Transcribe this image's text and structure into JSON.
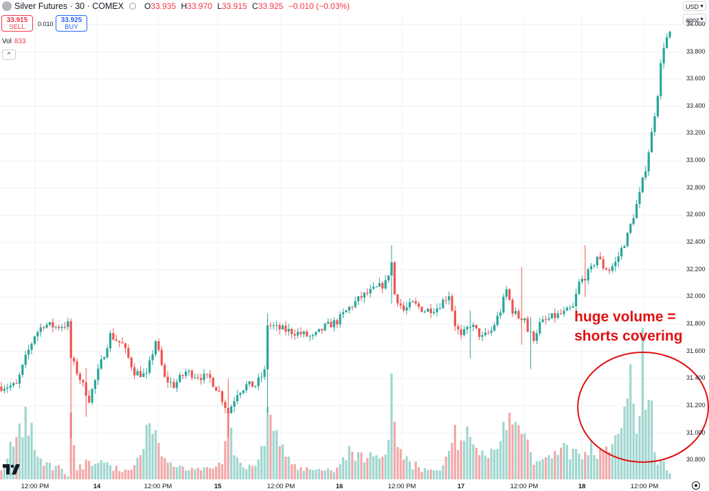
{
  "header": {
    "symbol": "Silver Futures · 30 · COMEX",
    "ohlc": {
      "o_label": "O",
      "o": "33.935",
      "h_label": "H",
      "h": "33.970",
      "l_label": "L",
      "l": "33.915",
      "c_label": "C",
      "c": "33.925",
      "change": "−0.010 (−0.03%)"
    }
  },
  "trade": {
    "sell_price": "33.915",
    "sell_label": "SELL",
    "spread": "0.010",
    "buy_price": "33.925",
    "buy_label": "BUY"
  },
  "volume": {
    "label": "Vol",
    "value": "833"
  },
  "currency": "USD",
  "scale_mode": "apoz",
  "annotation": {
    "line1": "huge volume =",
    "line2": "shorts covering"
  },
  "colors": {
    "up": "#26a69a",
    "down": "#ef5350",
    "vol_up": "#9fd6cf",
    "vol_down": "#f4a7a7",
    "annotation": "#e01010",
    "grid": "#eef0f3"
  },
  "chart_data": {
    "type": "candlestick",
    "ylim": [
      30.66,
      34.08
    ],
    "y_ticks": [
      "34.000",
      "33.800",
      "33.600",
      "33.400",
      "33.200",
      "33.000",
      "32.800",
      "32.600",
      "32.400",
      "32.200",
      "32.000",
      "31.800",
      "31.600",
      "31.400",
      "31.200",
      "31.000",
      "30.800"
    ],
    "x_ticks": [
      {
        "label": "12:00 PM",
        "bold": false
      },
      {
        "label": "14",
        "bold": true
      },
      {
        "label": "12:00 PM",
        "bold": false
      },
      {
        "label": "15",
        "bold": true
      },
      {
        "label": "12:00 PM",
        "bold": false
      },
      {
        "label": "16",
        "bold": true
      },
      {
        "label": "12:00 PM",
        "bold": false
      },
      {
        "label": "17",
        "bold": true
      },
      {
        "label": "12:00 PM",
        "bold": false
      },
      {
        "label": "18",
        "bold": true
      },
      {
        "label": "12:00 PM",
        "bold": false
      }
    ],
    "close_anchors": [
      [
        0,
        31.34
      ],
      [
        5,
        31.35
      ],
      [
        8,
        31.55
      ],
      [
        11,
        31.72
      ],
      [
        14,
        31.8
      ],
      [
        18,
        31.78
      ],
      [
        22,
        31.8
      ],
      [
        23,
        31.55
      ],
      [
        26,
        31.4
      ],
      [
        29,
        31.25
      ],
      [
        32,
        31.45
      ],
      [
        36,
        31.72
      ],
      [
        40,
        31.65
      ],
      [
        44,
        31.45
      ],
      [
        48,
        31.42
      ],
      [
        51,
        31.68
      ],
      [
        54,
        31.4
      ],
      [
        57,
        31.35
      ],
      [
        61,
        31.45
      ],
      [
        65,
        31.42
      ],
      [
        69,
        31.4
      ],
      [
        72,
        31.3
      ],
      [
        75,
        31.15
      ],
      [
        78,
        31.3
      ],
      [
        81,
        31.35
      ],
      [
        84,
        31.35
      ],
      [
        87,
        31.45
      ],
      [
        88,
        31.8
      ],
      [
        91,
        31.77
      ],
      [
        95,
        31.75
      ],
      [
        99,
        31.73
      ],
      [
        103,
        31.7
      ],
      [
        107,
        31.78
      ],
      [
        111,
        31.82
      ],
      [
        115,
        31.92
      ],
      [
        119,
        32.0
      ],
      [
        123,
        32.05
      ],
      [
        127,
        32.1
      ],
      [
        129,
        32.25
      ],
      [
        130,
        32.02
      ],
      [
        133,
        31.9
      ],
      [
        136,
        31.95
      ],
      [
        140,
        31.9
      ],
      [
        144,
        31.92
      ],
      [
        148,
        32.02
      ],
      [
        150,
        31.8
      ],
      [
        152,
        31.7
      ],
      [
        155,
        31.8
      ],
      [
        159,
        31.7
      ],
      [
        162,
        31.75
      ],
      [
        165,
        31.9
      ],
      [
        167,
        32.05
      ],
      [
        169,
        31.9
      ],
      [
        171,
        31.85
      ],
      [
        173,
        31.85
      ],
      [
        174,
        31.75
      ],
      [
        176,
        31.7
      ],
      [
        178,
        31.8
      ],
      [
        182,
        31.85
      ],
      [
        186,
        31.88
      ],
      [
        189,
        31.92
      ],
      [
        191,
        32.1
      ],
      [
        193,
        32.15
      ],
      [
        195,
        32.2
      ],
      [
        197,
        32.3
      ],
      [
        199,
        32.22
      ],
      [
        201,
        32.2
      ],
      [
        203,
        32.25
      ],
      [
        205,
        32.35
      ],
      [
        207,
        32.45
      ],
      [
        209,
        32.6
      ],
      [
        211,
        32.75
      ],
      [
        213,
        32.95
      ],
      [
        215,
        33.2
      ],
      [
        217,
        33.5
      ],
      [
        218,
        33.7
      ],
      [
        219,
        33.85
      ],
      [
        220,
        33.9
      ],
      [
        221,
        33.925
      ]
    ],
    "spike_bars": [
      [
        23,
        "down",
        31.8,
        30.96
      ],
      [
        28,
        "down",
        31.48,
        31.12
      ],
      [
        75,
        "up",
        31.4,
        30.97
      ],
      [
        88,
        "up",
        31.88,
        31.15
      ],
      [
        129,
        "down",
        32.38,
        31.95
      ],
      [
        155,
        "down",
        31.9,
        31.55
      ],
      [
        172,
        "down",
        32.22,
        31.65
      ],
      [
        175,
        "down",
        31.85,
        31.47
      ],
      [
        193,
        "up",
        32.38,
        32.0
      ]
    ],
    "volume_anchors": [
      [
        0,
        60
      ],
      [
        5,
        280
      ],
      [
        8,
        480
      ],
      [
        12,
        150
      ],
      [
        16,
        110
      ],
      [
        20,
        70
      ],
      [
        22,
        20
      ],
      [
        23,
        440
      ],
      [
        25,
        60
      ],
      [
        28,
        130
      ],
      [
        30,
        90
      ],
      [
        34,
        110
      ],
      [
        38,
        90
      ],
      [
        42,
        60
      ],
      [
        46,
        160
      ],
      [
        48,
        360
      ],
      [
        50,
        300
      ],
      [
        52,
        240
      ],
      [
        54,
        140
      ],
      [
        58,
        80
      ],
      [
        62,
        60
      ],
      [
        66,
        60
      ],
      [
        70,
        70
      ],
      [
        73,
        100
      ],
      [
        75,
        440
      ],
      [
        77,
        160
      ],
      [
        80,
        80
      ],
      [
        84,
        90
      ],
      [
        87,
        220
      ],
      [
        88,
        480
      ],
      [
        90,
        320
      ],
      [
        92,
        220
      ],
      [
        94,
        150
      ],
      [
        97,
        100
      ],
      [
        101,
        80
      ],
      [
        105,
        70
      ],
      [
        109,
        60
      ],
      [
        112,
        100
      ],
      [
        115,
        220
      ],
      [
        118,
        180
      ],
      [
        121,
        140
      ],
      [
        124,
        160
      ],
      [
        126,
        150
      ],
      [
        128,
        260
      ],
      [
        129,
        700
      ],
      [
        130,
        380
      ],
      [
        132,
        200
      ],
      [
        135,
        120
      ],
      [
        138,
        80
      ],
      [
        141,
        60
      ],
      [
        144,
        60
      ],
      [
        147,
        150
      ],
      [
        150,
        360
      ],
      [
        152,
        260
      ],
      [
        155,
        280
      ],
      [
        158,
        160
      ],
      [
        161,
        140
      ],
      [
        164,
        200
      ],
      [
        166,
        380
      ],
      [
        168,
        440
      ],
      [
        170,
        380
      ],
      [
        172,
        300
      ],
      [
        175,
        180
      ],
      [
        178,
        120
      ],
      [
        182,
        140
      ],
      [
        186,
        240
      ],
      [
        190,
        200
      ],
      [
        193,
        180
      ],
      [
        195,
        260
      ],
      [
        198,
        200
      ],
      [
        201,
        180
      ],
      [
        204,
        300
      ],
      [
        206,
        480
      ],
      [
        208,
        760
      ],
      [
        209,
        500
      ],
      [
        211,
        420
      ],
      [
        212,
        1000
      ],
      [
        213,
        460
      ],
      [
        215,
        520
      ],
      [
        216,
        180
      ],
      [
        218,
        130
      ],
      [
        220,
        60
      ],
      [
        221,
        40
      ]
    ],
    "volume_max": 1080
  }
}
